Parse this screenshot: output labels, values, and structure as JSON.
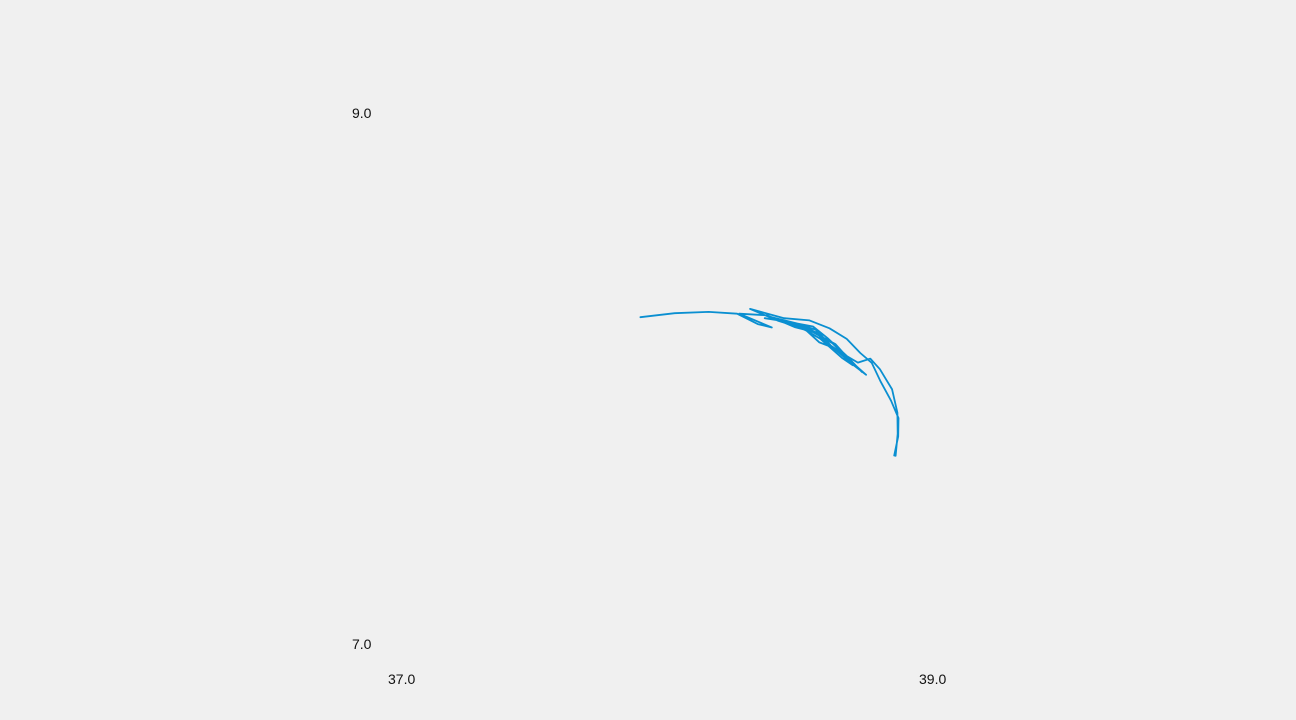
{
  "map": {
    "background_color": "#f0f0f0",
    "track_color": "#0a8fd1",
    "x_axis": {
      "range": [
        37.0,
        39.0
      ],
      "tick_labels": [
        "37.0",
        "39.0"
      ]
    },
    "y_axis": {
      "range": [
        7.0,
        9.0
      ],
      "tick_labels": [
        "9.0",
        "7.0"
      ]
    },
    "track": {
      "points": [
        [
          37.898,
          8.231
        ],
        [
          38.027,
          8.246
        ],
        [
          38.155,
          8.251
        ],
        [
          38.262,
          8.244
        ],
        [
          38.34,
          8.205
        ],
        [
          38.393,
          8.192
        ],
        [
          38.27,
          8.244
        ],
        [
          38.375,
          8.238
        ],
        [
          38.481,
          8.193
        ],
        [
          38.544,
          8.177
        ],
        [
          38.632,
          8.13
        ],
        [
          38.669,
          8.089
        ],
        [
          38.62,
          8.117
        ],
        [
          38.717,
          8.06
        ],
        [
          38.764,
          8.075
        ],
        [
          38.8,
          8.035
        ],
        [
          38.846,
          7.959
        ],
        [
          38.866,
          7.871
        ],
        [
          38.867,
          7.792
        ],
        [
          38.859,
          7.709
        ],
        [
          38.854,
          7.71
        ],
        [
          38.869,
          7.782
        ],
        [
          38.87,
          7.851
        ],
        [
          38.842,
          7.916
        ],
        [
          38.803,
          7.988
        ],
        [
          38.769,
          8.059
        ],
        [
          38.726,
          8.096
        ],
        [
          38.675,
          8.149
        ],
        [
          38.61,
          8.189
        ],
        [
          38.535,
          8.219
        ],
        [
          38.439,
          8.227
        ],
        [
          38.311,
          8.262
        ],
        [
          38.418,
          8.217
        ],
        [
          38.508,
          8.189
        ],
        [
          38.575,
          8.15
        ],
        [
          38.659,
          8.076
        ],
        [
          38.698,
          8.05
        ],
        [
          38.649,
          8.101
        ],
        [
          38.596,
          8.137
        ],
        [
          38.558,
          8.174
        ],
        [
          38.498,
          8.205
        ],
        [
          38.393,
          8.231
        ],
        [
          38.479,
          8.207
        ],
        [
          38.574,
          8.168
        ],
        [
          38.618,
          8.121
        ],
        [
          38.704,
          8.048
        ],
        [
          38.748,
          8.014
        ],
        [
          38.678,
          8.076
        ],
        [
          38.621,
          8.133
        ],
        [
          38.547,
          8.175
        ],
        [
          38.452,
          8.214
        ],
        [
          38.366,
          8.227
        ],
        [
          38.445,
          8.216
        ],
        [
          38.524,
          8.18
        ],
        [
          38.572,
          8.136
        ],
        [
          38.619,
          8.118
        ],
        [
          38.558,
          8.184
        ],
        [
          38.473,
          8.21
        ],
        [
          38.548,
          8.196
        ],
        [
          38.602,
          8.153
        ],
        [
          38.676,
          8.084
        ],
        [
          38.732,
          8.025
        ]
      ]
    }
  }
}
